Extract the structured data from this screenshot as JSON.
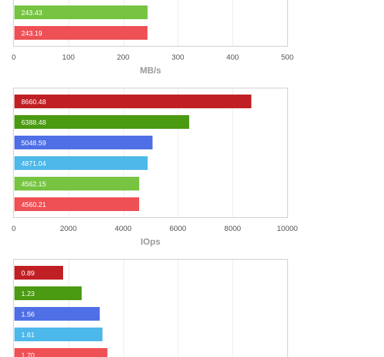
{
  "chart_data": [
    {
      "type": "bar",
      "orientation": "horizontal",
      "values": [
        243.43,
        243.19
      ],
      "colors": [
        "#76c442",
        "#ee5055"
      ],
      "value_labels": [
        "243.43",
        "243.19"
      ],
      "xlabel": "MB/s",
      "xlim": [
        0,
        500
      ],
      "xticks": [
        "0",
        "100",
        "200",
        "300",
        "400",
        "500"
      ],
      "grid": true,
      "cropped": "top"
    },
    {
      "type": "bar",
      "orientation": "horizontal",
      "values": [
        8660.48,
        6388.48,
        5048.59,
        4871.04,
        4562.15,
        4560.21
      ],
      "colors": [
        "#c01f24",
        "#4a9a12",
        "#4f6fe6",
        "#4db8ea",
        "#76c442",
        "#ee5055"
      ],
      "value_labels": [
        "8660.48",
        "6388.48",
        "5048.59",
        "4871.04",
        "4562.15",
        "4560.21"
      ],
      "xlabel": "IOps",
      "xlim": [
        0,
        10000
      ],
      "xticks": [
        "0",
        "2000",
        "4000",
        "6000",
        "8000",
        "10000"
      ],
      "grid": true
    },
    {
      "type": "bar",
      "orientation": "horizontal",
      "values": [
        0.89,
        1.23,
        1.56,
        1.61,
        1.7
      ],
      "colors": [
        "#c01f24",
        "#4a9a12",
        "#4f6fe6",
        "#4db8ea",
        "#ee5055"
      ],
      "value_labels": [
        "0.89",
        "1.23",
        "1.56",
        "1.61",
        "1.70"
      ],
      "xlim": [
        0,
        5
      ],
      "grid": true,
      "cropped": "bottom"
    }
  ]
}
